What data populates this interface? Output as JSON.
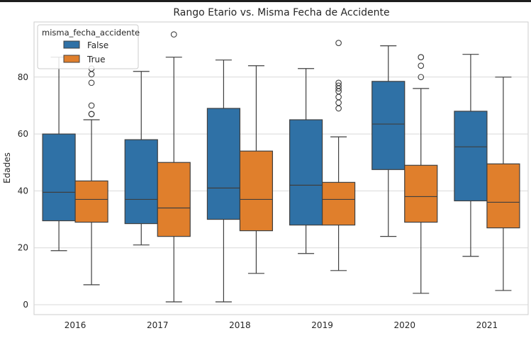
{
  "chart_data": {
    "type": "box",
    "title": "Rango Etario vs. Misma Fecha de Accidente",
    "xlabel": "",
    "ylabel": "Edades",
    "categories": [
      "2016",
      "2017",
      "2018",
      "2019",
      "2020",
      "2021"
    ],
    "ylim": [
      -3,
      100
    ],
    "yticks": [
      0,
      20,
      40,
      60,
      80
    ],
    "grid": true,
    "legend": {
      "title": "misma_fecha_accidente",
      "placement": "top-left",
      "entries": [
        "False",
        "True"
      ]
    },
    "series": [
      {
        "name": "False",
        "color": "#2f71a6",
        "boxes": [
          {
            "whislo": 19,
            "q1": 29.5,
            "med": 39.5,
            "q3": 60,
            "whishi": 87,
            "fliers": []
          },
          {
            "whislo": 21,
            "q1": 28.5,
            "med": 37,
            "q3": 58,
            "whishi": 82,
            "fliers": []
          },
          {
            "whislo": 1,
            "q1": 30,
            "med": 41,
            "q3": 69,
            "whishi": 86,
            "fliers": []
          },
          {
            "whislo": 18,
            "q1": 28,
            "med": 42,
            "q3": 65,
            "whishi": 83,
            "fliers": []
          },
          {
            "whislo": 24,
            "q1": 47.5,
            "med": 63.5,
            "q3": 78.5,
            "whishi": 91,
            "fliers": []
          },
          {
            "whislo": 17,
            "q1": 36.5,
            "med": 55.5,
            "q3": 68,
            "whishi": 88,
            "fliers": []
          }
        ]
      },
      {
        "name": "True",
        "color": "#e07f2c",
        "boxes": [
          {
            "whislo": 7,
            "q1": 29,
            "med": 37,
            "q3": 43.5,
            "whishi": 65,
            "fliers": [
              67,
              67,
              70,
              78,
              81,
              83
            ]
          },
          {
            "whislo": 1,
            "q1": 24,
            "med": 34,
            "q3": 50,
            "whishi": 87,
            "fliers": [
              95
            ]
          },
          {
            "whislo": 11,
            "q1": 26,
            "med": 37,
            "q3": 54,
            "whishi": 84,
            "fliers": []
          },
          {
            "whislo": 12,
            "q1": 28,
            "med": 37,
            "q3": 43,
            "whishi": 59,
            "fliers": [
              69,
              71,
              73,
              75,
              76,
              77,
              78,
              92
            ]
          },
          {
            "whislo": 4,
            "q1": 29,
            "med": 38,
            "q3": 49,
            "whishi": 76,
            "fliers": [
              80,
              84,
              87,
              87
            ]
          },
          {
            "whislo": 5,
            "q1": 27,
            "med": 36,
            "q3": 49.5,
            "whishi": 80,
            "fliers": []
          }
        ]
      }
    ]
  }
}
